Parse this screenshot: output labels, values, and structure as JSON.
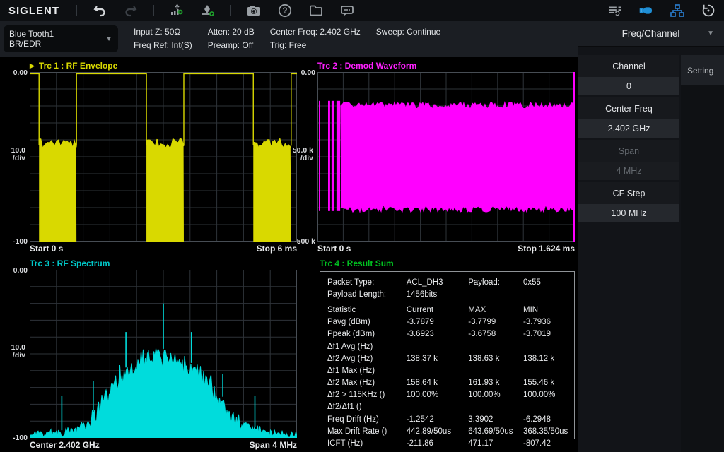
{
  "toolbar": {
    "logo": "SIGLENT",
    "icons": {
      "undo": "undo-icon",
      "redo": "redo-icon",
      "add_trace": "add-trace-icon",
      "add_marker": "add-marker-icon",
      "screenshot": "camera-icon",
      "help": "help-icon",
      "file": "file-icon",
      "message": "message-icon",
      "preset_list": "preset-list-icon",
      "usb": "usb-icon",
      "lan": "lan-icon",
      "history": "history-icon"
    }
  },
  "glyphs": {
    "dropdown_arrow": "▼",
    "menu_arrow": "▼",
    "trace_active_marker": "▶",
    "help_mark": "?"
  },
  "info_bar": {
    "mode_line1": "Blue Tooth1",
    "mode_line2": "BR/EDR",
    "col1_line1": "Input Z: 50Ω",
    "col1_line2": "Freq Ref: Int(S)",
    "col2_line1": "Atten: 20 dB",
    "col2_line2": "Preamp: Off",
    "col3_line1": "Center Freq: 2.402 GHz",
    "col3_line2": "Trig: Free",
    "col4_line1": "Sweep: Continue"
  },
  "side_menu": {
    "header": "Freq/Channel",
    "buttons": [
      {
        "label": "Channel",
        "value": "0",
        "enabled": true
      },
      {
        "label": "Center Freq",
        "value": "2.402 GHz",
        "enabled": true
      },
      {
        "label": "Span",
        "value": "4 MHz",
        "enabled": false
      },
      {
        "label": "CF Step",
        "value": "100 MHz",
        "enabled": true
      }
    ],
    "side_tab": "Setting"
  },
  "panels": {
    "trc1": {
      "title": "Trc 1 :  RF Envelope",
      "color": "#d9d900",
      "y_top": "0.00",
      "y_scale": "10.0",
      "y_unit": "/div",
      "y_bottom": "-100",
      "x_left": "Start 0 s",
      "x_right": "Stop 6 ms"
    },
    "trc2": {
      "title": "Trc 2 :  Demod Waveform",
      "color": "#ff00ff",
      "y_top": "0.00",
      "y_scale": "50.0 k",
      "y_unit": "/div",
      "y_bottom": "-500 k",
      "x_left": "Start 0 s",
      "x_right": "Stop 1.624 ms"
    },
    "trc3": {
      "title": "Trc 3 :  RF Spectrum",
      "color": "#00dcdc",
      "y_top": "0.00",
      "y_scale": "10.0",
      "y_unit": "/div",
      "y_bottom": "-100",
      "x_left": "Center 2.402 GHz",
      "x_right": "Span 4 MHz"
    },
    "trc4": {
      "title": "Trc 4 :  Result Sum",
      "color": "#00c020",
      "rows": [
        {
          "cells": [
            "Packet Type:",
            "ACL_DH3",
            "Payload:",
            "0x55"
          ]
        },
        {
          "cells": [
            "Payload Length:",
            "1456bits",
            "",
            ""
          ]
        },
        {
          "cells": [
            "Statistic",
            "Current",
            "MAX",
            "MIN"
          ],
          "gap": true
        },
        {
          "cells": [
            "Pavg (dBm)",
            "-3.7879",
            "-3.7799",
            "-3.7936"
          ]
        },
        {
          "cells": [
            "Ppeak (dBm)",
            "-3.6923",
            "-3.6758",
            "-3.7019"
          ]
        },
        {
          "cells": [
            "Δf1 Avg (Hz)",
            "",
            "",
            ""
          ]
        },
        {
          "cells": [
            "Δf2 Avg (Hz)",
            "138.37 k",
            "138.63 k",
            "138.12 k"
          ]
        },
        {
          "cells": [
            "Δf1 Max (Hz)",
            "",
            "",
            ""
          ]
        },
        {
          "cells": [
            "Δf2 Max (Hz)",
            "158.64 k",
            "161.93 k",
            "155.46 k"
          ]
        },
        {
          "cells": [
            "Δf2 > 115KHz ()",
            "100.00%",
            "100.00%",
            "100.00%"
          ]
        },
        {
          "cells": [
            "Δf2/Δf1 ()",
            "",
            "",
            ""
          ]
        },
        {
          "cells": [
            "Freq Drift (Hz)",
            "-1.2542",
            "3.3902",
            "-6.2948"
          ]
        },
        {
          "cells": [
            "Max Drift Rate ()",
            "442.89/50us",
            "643.69/50us",
            "368.35/50us"
          ]
        },
        {
          "cells": [
            "ICFT (Hz)",
            "-211.86",
            "471.17",
            "-807.42"
          ]
        }
      ]
    }
  },
  "chart_data": [
    {
      "id": "trc1",
      "type": "line",
      "title": "RF Envelope",
      "color": "#d9d900",
      "xlabel_start": "Start 0 s",
      "xlabel_stop": "Stop 6 ms",
      "x_range_ms": [
        0,
        6
      ],
      "ylim_db": [
        -100,
        0
      ],
      "db_per_div": 10,
      "grid": [
        10,
        10
      ],
      "burst_on_level_db": -1,
      "noise_top_db": -43,
      "noise_floor_db": -100,
      "segments_ms": [
        {
          "state": "on",
          "t0": 0.0,
          "t1": 0.21
        },
        {
          "state": "off",
          "t0": 0.21,
          "t1": 1.05
        },
        {
          "state": "on",
          "t0": 1.05,
          "t1": 2.62
        },
        {
          "state": "off",
          "t0": 2.62,
          "t1": 3.46
        },
        {
          "state": "on",
          "t0": 3.46,
          "t1": 5.02
        },
        {
          "state": "off",
          "t0": 5.02,
          "t1": 5.87
        },
        {
          "state": "on",
          "t0": 5.87,
          "t1": 6.0
        }
      ]
    },
    {
      "id": "trc2",
      "type": "line",
      "title": "Demod Waveform",
      "color": "#ff00ff",
      "xlabel_start": "Start 0 s",
      "xlabel_stop": "Stop 1.624 ms",
      "x_range_ms": [
        0,
        1.624
      ],
      "ylim_khz": [
        -500,
        0
      ],
      "khz_per_div": 50,
      "grid": [
        10,
        10
      ],
      "preamble_bars_ms": [
        [
          0.009,
          0.018
        ],
        [
          0.067,
          0.08
        ],
        [
          0.089,
          0.103
        ],
        [
          0.12,
          0.143
        ]
      ],
      "preamble_top_khz": -85,
      "preamble_bottom_khz": -410,
      "body_ms": [
        0.147,
        1.615
      ],
      "body_top_khz": -102,
      "body_bottom_khz": -400,
      "right_edge_marker": true
    },
    {
      "id": "trc3",
      "type": "line",
      "title": "RF Spectrum",
      "color": "#00dcdc",
      "xlabel_start": "Center 2.402 GHz",
      "xlabel_stop": "Span 4 MHz",
      "center_ghz": 2.402,
      "span_mhz": 4,
      "x_range_mhz": [
        -2,
        2
      ],
      "ylim_db": [
        -100,
        0
      ],
      "db_per_div": 10,
      "grid": [
        10,
        10
      ],
      "envelope_points_mhz_db": [
        [
          -2.0,
          -97
        ],
        [
          -1.6,
          -96
        ],
        [
          -1.3,
          -94
        ],
        [
          -1.1,
          -87
        ],
        [
          -0.9,
          -75
        ],
        [
          -0.7,
          -63
        ],
        [
          -0.5,
          -56
        ],
        [
          -0.3,
          -51
        ],
        [
          -0.15,
          -49
        ],
        [
          0,
          -47
        ],
        [
          0.15,
          -50
        ],
        [
          0.3,
          -53
        ],
        [
          0.5,
          -57
        ],
        [
          0.7,
          -66
        ],
        [
          0.9,
          -76
        ],
        [
          1.1,
          -88
        ],
        [
          1.4,
          -94
        ],
        [
          1.7,
          -96
        ],
        [
          2.0,
          -97
        ]
      ],
      "spikes_mhz_db": [
        [
          -1.52,
          -75
        ],
        [
          -1.05,
          -66
        ],
        [
          -0.56,
          -37
        ],
        [
          0.0,
          -20
        ],
        [
          0.42,
          -37
        ],
        [
          0.89,
          -62
        ],
        [
          1.37,
          -75
        ]
      ]
    }
  ]
}
